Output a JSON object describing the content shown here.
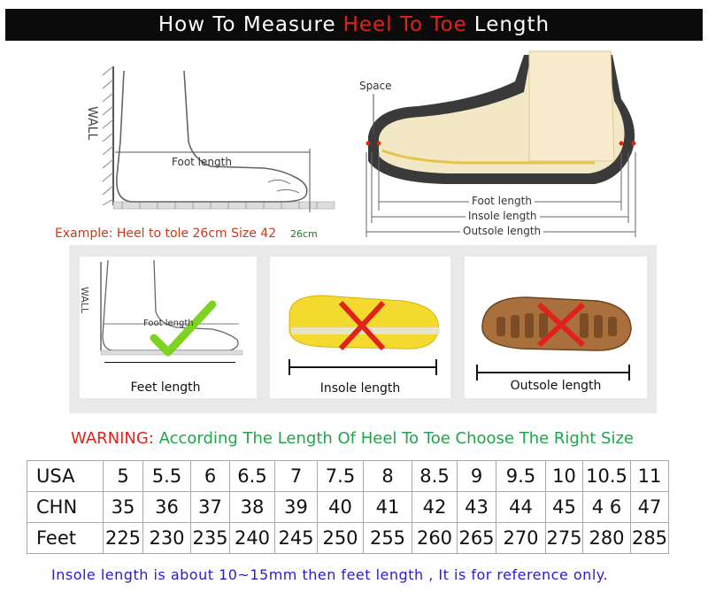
{
  "title": {
    "pre": "How To Measure",
    "highlight": "Heel To Toe",
    "post": "Length"
  },
  "diagram_left": {
    "wall": "WALL",
    "foot_length": "Foot length",
    "example": "Example: Heel to tole 26cm Size 42",
    "cm": "26cm"
  },
  "diagram_right": {
    "space": "Space",
    "foot_length": "Foot length",
    "insole_length": "Insole length",
    "outsole_length": "Outsole length"
  },
  "panels": [
    {
      "caption": "Feet length",
      "wall": "WALL",
      "foot_length": "Foot length"
    },
    {
      "caption": "Insole length"
    },
    {
      "caption": "Outsole length"
    }
  ],
  "warning": {
    "label": "WARNING:",
    "text": "According The Length Of Heel To Toe Choose The Right Size"
  },
  "size_table": {
    "rows": [
      {
        "label": "USA",
        "values": [
          "5",
          "5.5",
          "6",
          "6.5",
          "7",
          "7.5",
          "8",
          "8.5",
          "9",
          "9.5",
          "10",
          "10.5",
          "11"
        ]
      },
      {
        "label": "CHN",
        "values": [
          "35",
          "36",
          "37",
          "38",
          "39",
          "40",
          "41",
          "42",
          "43",
          "44",
          "45",
          "4 6",
          "47"
        ]
      },
      {
        "label": "Feet",
        "values": [
          "225",
          "230",
          "235",
          "240",
          "245",
          "250",
          "255",
          "260",
          "265",
          "270",
          "275",
          "280",
          "285"
        ]
      }
    ]
  },
  "note": "Insole length is about 10~15mm then feet length , It is for reference only.",
  "colors": {
    "accent_red": "#e0231a",
    "warning_green": "#1ea64a",
    "note_blue": "#2a1ad6",
    "check_green": "#7ed321"
  }
}
